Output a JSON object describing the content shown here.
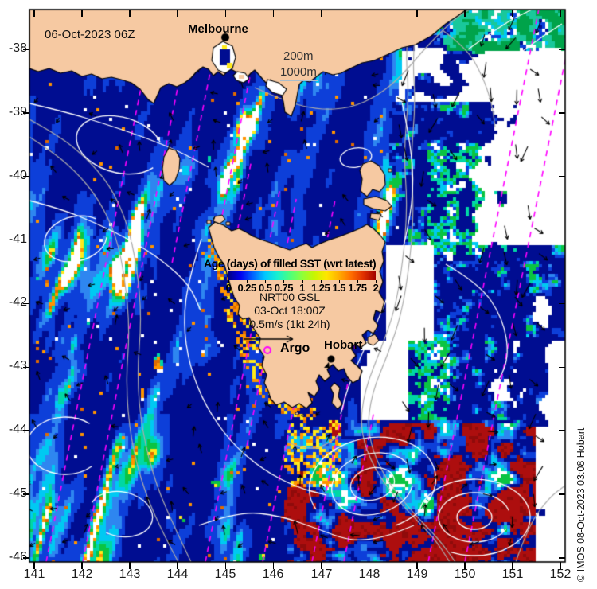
{
  "figure": {
    "datetime_label": "06-Oct-2023 06Z",
    "copyright_vertical": "© IMOS 08-Oct-2023 03:08 Hobart"
  },
  "places": {
    "melbourne": "Melbourne",
    "hobart": "Hobart",
    "argo": "Argo"
  },
  "depth_contours": {
    "d200": "200m",
    "d1000": "1000m"
  },
  "legend": {
    "title": "Age (days) of filled SST (wrt latest)",
    "tick_labels": [
      "0",
      "0.25",
      "0.5",
      "0.75",
      "1",
      "1.25",
      "1.5",
      "1.75",
      "2"
    ],
    "model": "NRT00 GSL",
    "valid_time": "03-Oct 18:00Z",
    "vector_scale": "0.5m/s (1kt 24h)"
  },
  "axes": {
    "lat_ticks": [
      "-38",
      "-39",
      "-40",
      "-41",
      "-42",
      "-43",
      "-44",
      "-45",
      "-46"
    ],
    "lon_ticks": [
      "141",
      "142",
      "143",
      "144",
      "145",
      "146",
      "147",
      "148",
      "149",
      "150",
      "151",
      "152"
    ]
  },
  "map_meta": {
    "lon_min": 141,
    "lon_max": 152,
    "lat_min": -46,
    "lat_max": -38
  },
  "colors": {
    "land": "#F6C9A2",
    "track_magenta": "#FF00FF",
    "contour_white": "#FFFFFF",
    "contour_gray": "#ABABAB",
    "marker_black": "#000000",
    "sea_palette": {
      "navy": "#000D91",
      "royal": "#0D3FD9",
      "blue": "#2E86F0",
      "cyan": "#00C9F2",
      "teal": "#00D7A4",
      "green": "#0BC442",
      "band_green": "#00A34A",
      "band_teal": "#19C89B",
      "yellow": "#FFE91A",
      "orange": "#FF9400",
      "dark_orange": "#E06A00",
      "red": "#AD0E0E",
      "dark_red": "#8F0B0B",
      "white": "#FFFFFF"
    },
    "colorbar_gradient": [
      "#000085",
      "#0000F0",
      "#0064FF",
      "#00C8FF",
      "#17F0CF",
      "#4BFF7E",
      "#8CFF3C",
      "#C8F500",
      "#FFE600",
      "#FFAE00",
      "#FF6D00",
      "#E03000",
      "#A00000"
    ]
  }
}
